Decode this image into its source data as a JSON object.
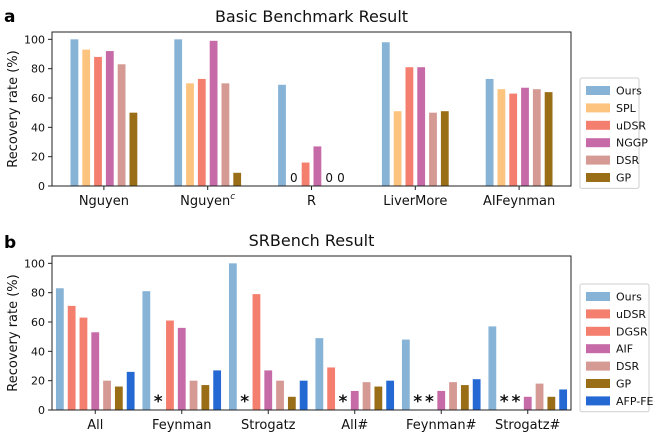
{
  "colors": {
    "Ours": "#87b3d6",
    "SPL": "#fdc480",
    "uDSR": "#f47f6e",
    "NGGP": "#c66aa8",
    "DSR": "#d69a94",
    "GP": "#9a6e17",
    "DGSR": "#f47f6e",
    "AIF": "#c66aa8",
    "AFP-FE": "#2468d4"
  },
  "chart_data": [
    {
      "panel": "a",
      "type": "bar",
      "title": "Basic Benchmark Result",
      "xlabel": "",
      "ylabel": "Recovery rate (%)",
      "ylim": [
        0,
        105
      ],
      "yticks": [
        "0",
        "20",
        "40",
        "60",
        "80",
        "100"
      ],
      "categories": [
        "Nguyen",
        "Nguyen",
        "R",
        "LiverMore",
        "AIFeynman"
      ],
      "category_superscripts": [
        "",
        "c",
        "",
        "",
        ""
      ],
      "legend": {
        "position": "right",
        "entries": [
          "Ours",
          "SPL",
          "uDSR",
          "NGGP",
          "DSR",
          "GP"
        ]
      },
      "series": [
        {
          "name": "Ours",
          "values": [
            100,
            100,
            69,
            98,
            73
          ]
        },
        {
          "name": "SPL",
          "values": [
            93,
            70,
            null,
            51,
            66
          ]
        },
        {
          "name": "uDSR",
          "values": [
            88,
            73,
            16,
            81,
            63
          ]
        },
        {
          "name": "NGGP",
          "values": [
            92,
            99,
            27,
            81,
            67
          ]
        },
        {
          "name": "DSR",
          "values": [
            83,
            70,
            null,
            50,
            66
          ]
        },
        {
          "name": "GP",
          "values": [
            50,
            9,
            null,
            51,
            64
          ]
        }
      ],
      "annotations": [
        {
          "category": 2,
          "series": 1,
          "text": "0"
        },
        {
          "category": 2,
          "series": 4,
          "text": "0"
        },
        {
          "category": 2,
          "series": 5,
          "text": "0"
        }
      ]
    },
    {
      "panel": "b",
      "type": "bar",
      "title": "SRBench Result",
      "xlabel": "",
      "ylabel": "Recovery rate (%)",
      "ylim": [
        0,
        105
      ],
      "yticks": [
        "0",
        "20",
        "40",
        "60",
        "80",
        "100"
      ],
      "categories": [
        "All",
        "Feynman",
        "Strogatz",
        "All#",
        "Feynman#",
        "Strogatz#"
      ],
      "category_superscripts": [
        "",
        "",
        "",
        "",
        "",
        ""
      ],
      "legend": {
        "position": "right",
        "entries": [
          "Ours",
          "uDSR",
          "DGSR",
          "AIF",
          "DSR",
          "GP",
          "AFP-FE"
        ]
      },
      "series": [
        {
          "name": "Ours",
          "values": [
            83,
            81,
            100,
            49,
            48,
            57
          ]
        },
        {
          "name": "uDSR",
          "values": [
            71,
            null,
            null,
            29,
            null,
            null
          ]
        },
        {
          "name": "DGSR",
          "values": [
            63,
            61,
            79,
            null,
            null,
            null
          ]
        },
        {
          "name": "AIF",
          "values": [
            53,
            56,
            27,
            13,
            13,
            9
          ]
        },
        {
          "name": "DSR",
          "values": [
            20,
            20,
            20,
            19,
            19,
            18
          ]
        },
        {
          "name": "GP",
          "values": [
            16,
            17,
            9,
            16,
            17,
            9
          ]
        },
        {
          "name": "AFP-FE",
          "values": [
            26,
            27,
            20,
            20,
            21,
            14
          ]
        }
      ],
      "annotations": [
        {
          "category": 1,
          "series": 1,
          "text": "*"
        },
        {
          "category": 2,
          "series": 1,
          "text": "*"
        },
        {
          "category": 3,
          "series": 2,
          "text": "*"
        },
        {
          "category": 4,
          "series": 1,
          "text": "*"
        },
        {
          "category": 4,
          "series": 2,
          "text": "*"
        },
        {
          "category": 5,
          "series": 1,
          "text": "*"
        },
        {
          "category": 5,
          "series": 2,
          "text": "*"
        }
      ]
    }
  ]
}
